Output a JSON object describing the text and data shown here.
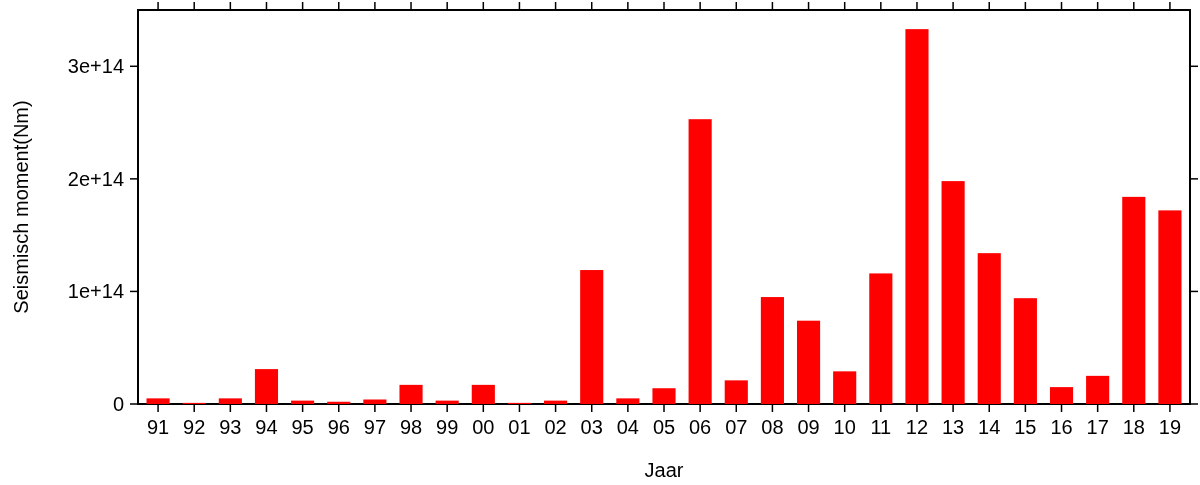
{
  "chart_data": {
    "type": "bar",
    "xlabel": "Jaar",
    "ylabel": "Seismisch moment(Nm)",
    "categories": [
      "91",
      "92",
      "93",
      "94",
      "95",
      "96",
      "97",
      "98",
      "99",
      "00",
      "01",
      "02",
      "03",
      "04",
      "05",
      "06",
      "07",
      "08",
      "09",
      "10",
      "11",
      "12",
      "13",
      "14",
      "15",
      "16",
      "17",
      "18",
      "19"
    ],
    "values": [
      5000000000000.0,
      1000000000000.0,
      5000000000000.0,
      31000000000000.0,
      3000000000000.0,
      2000000000000.0,
      4000000000000.0,
      17000000000000.0,
      3000000000000.0,
      17000000000000.0,
      1000000000000.0,
      3000000000000.0,
      119000000000000.0,
      5000000000000.0,
      14000000000000.0,
      253000000000000.0,
      21000000000000.0,
      95000000000000.0,
      74000000000000.0,
      29000000000000.0,
      116000000000000.0,
      333000000000000.0,
      198000000000000.0,
      134000000000000.0,
      94000000000000.0,
      15000000000000.0,
      25000000000000.0,
      184000000000000.0,
      172000000000000.0
    ],
    "color": "#ff0000",
    "ylim": [
      0,
      350000000000000.0
    ],
    "yticks": [
      {
        "value": 0,
        "label": "0"
      },
      {
        "value": 100000000000000.0,
        "label": "1e+14"
      },
      {
        "value": 200000000000000.0,
        "label": "2e+14"
      },
      {
        "value": 300000000000000.0,
        "label": "3e+14"
      }
    ],
    "grid": false
  }
}
